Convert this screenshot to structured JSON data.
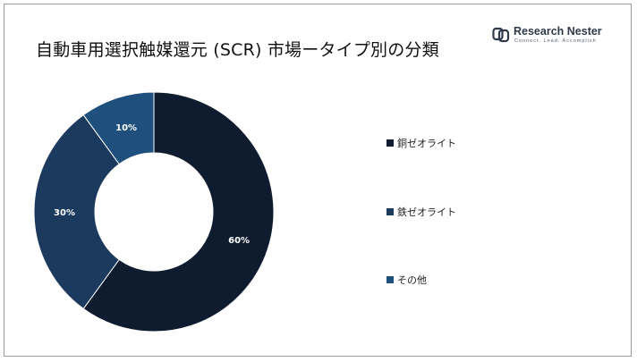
{
  "title": "自動車用選択触媒還元 (SCR) 市場ータイプ別の分類",
  "logo": {
    "name": "Research Nester",
    "tagline": "Connect. Lead. Accomplish"
  },
  "chart_data": {
    "type": "pie",
    "donut": true,
    "title": "自動車用選択触媒還元 (SCR) 市場ータイプ別の分類",
    "series": [
      {
        "name": "銅ゼオライト",
        "value": 60,
        "label": "60%",
        "color": "#0f1c30"
      },
      {
        "name": "鉄ゼオライト",
        "value": 30,
        "label": "30%",
        "color": "#1c3a5e"
      },
      {
        "name": "その他",
        "value": 10,
        "label": "10%",
        "color": "#1f4f7d"
      }
    ],
    "legend_position": "right"
  }
}
